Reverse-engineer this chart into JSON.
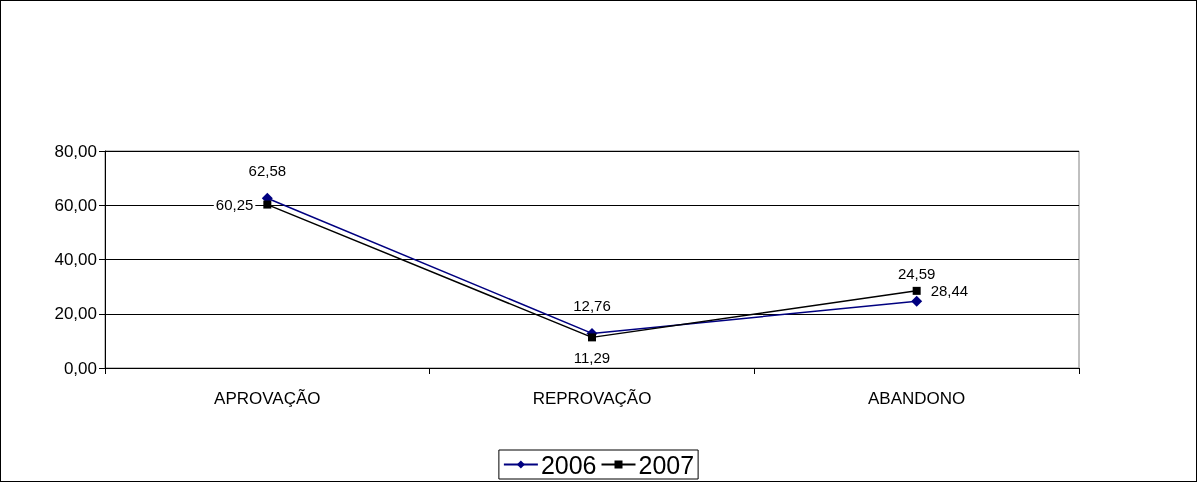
{
  "chart_data": {
    "type": "line",
    "categories": [
      "APROVAÇÃO",
      "REPROVAÇÃO",
      "ABANDONO"
    ],
    "series": [
      {
        "name": "2006",
        "color": "#000080",
        "marker": "diamond",
        "values": [
          62.58,
          12.76,
          24.59
        ],
        "value_labels": [
          "62,58",
          "12,76",
          "24,59"
        ]
      },
      {
        "name": "2007",
        "color": "#000000",
        "marker": "square",
        "values": [
          60.25,
          11.29,
          28.44
        ],
        "value_labels": [
          "60,25",
          "11,29",
          "28,44"
        ]
      }
    ],
    "ylim": [
      0,
      80
    ],
    "yticks": [
      {
        "value": 0,
        "label": "0,00"
      },
      {
        "value": 20,
        "label": "20,00"
      },
      {
        "value": 40,
        "label": "40,00"
      },
      {
        "value": 60,
        "label": "60,00"
      },
      {
        "value": 80,
        "label": "80,00"
      }
    ],
    "grid": "y",
    "legend": "bottom"
  }
}
